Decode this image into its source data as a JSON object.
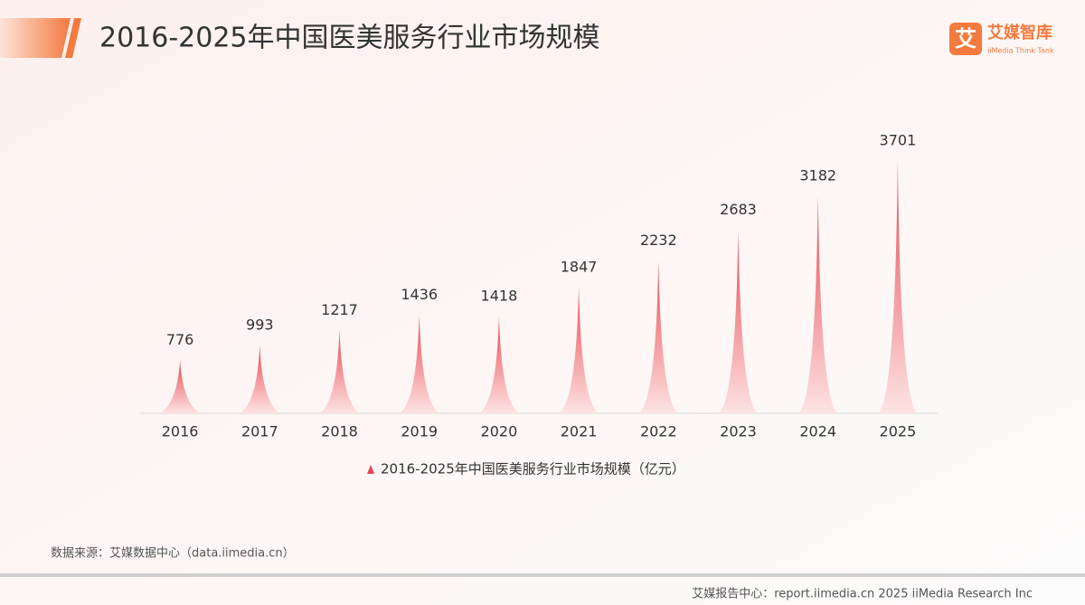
{
  "header": {
    "title": "2016-2025年中国医美服务行业市场规模",
    "logo": {
      "icon": "艾",
      "name": "艾媒智库",
      "tagline": "iiMedia Think Tank"
    }
  },
  "chart_data": {
    "type": "bar",
    "categories": [
      "2016",
      "2017",
      "2018",
      "2019",
      "2020",
      "2021",
      "2022",
      "2023",
      "2024",
      "2025"
    ],
    "series": [
      {
        "name": "2016-2025年中国医美服务行业市场规模（亿元）",
        "color": "#e8474f",
        "values": [
          776,
          993,
          1217,
          1436,
          1418,
          1847,
          2232,
          2683,
          3182,
          3701
        ]
      }
    ]
  },
  "source": "数据来源：艾媒数据中心（data.iimedia.cn）",
  "footer": "艾媒报告中心：report.iimedia.cn  2025 iiMedia Research Inc"
}
